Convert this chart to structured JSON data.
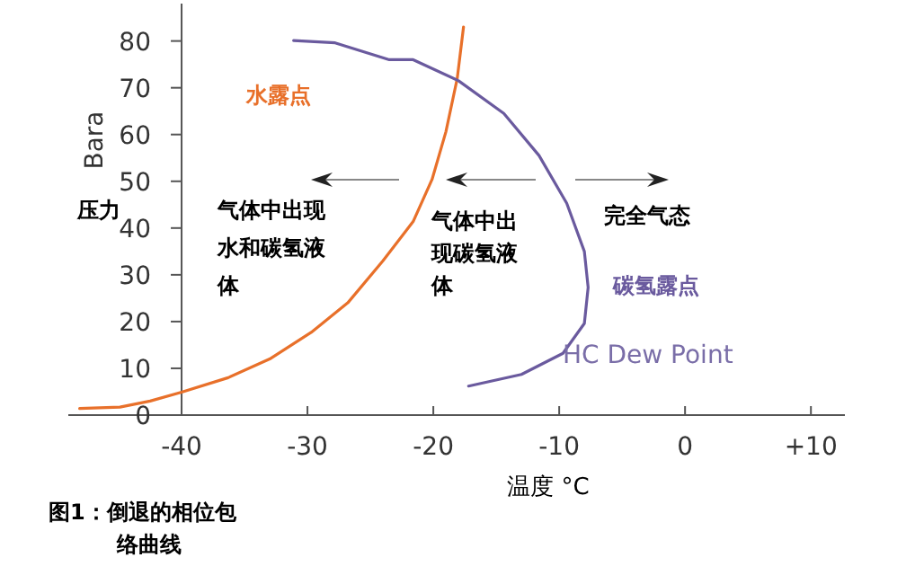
{
  "chart_data": {
    "type": "line",
    "xlabel": "温度 °C",
    "ylabel": "Bara",
    "xlim": [
      -49,
      12.7
    ],
    "ylim": [
      0,
      88
    ],
    "xticks": [
      -40,
      -30,
      -20,
      -10,
      0,
      {
        "value": 10,
        "label": "+10"
      }
    ],
    "yticks": [
      0,
      10,
      20,
      30,
      40,
      50,
      60,
      70,
      80
    ],
    "grid": false,
    "series": [
      {
        "name": "水露点",
        "color": "#e8702a",
        "x": [
          -48.1,
          -44.9,
          -42.5,
          -40,
          -36.3,
          -33,
          -29.7,
          -26.8,
          -24,
          -21.6,
          -20.1,
          -19.0,
          -18.1,
          -17.6
        ],
        "values": [
          1.4,
          1.7,
          3,
          4.9,
          8,
          12,
          17.7,
          24,
          33,
          41.4,
          50.4,
          60.6,
          72,
          83
        ]
      },
      {
        "name": "碳氢露点",
        "color": "#6a5a9e",
        "x": [
          -31.1,
          -27.8,
          -23.5,
          -21.6,
          -18,
          -14.4,
          -11.6,
          -9.4,
          -8,
          -7.7,
          -8,
          -9.7,
          -13,
          -17.2
        ],
        "values": [
          80.1,
          79.6,
          76,
          76,
          71.5,
          64.5,
          55.5,
          45.3,
          35,
          27.3,
          19.6,
          13.2,
          8.7,
          6.2
        ]
      }
    ],
    "annotations": [
      "压力",
      "气体中出现水和碳氢液体",
      "气体中出现碳氢液体",
      "完全气态",
      "HC Dew Point",
      "图1：倒退的相位包络曲线"
    ]
  }
}
